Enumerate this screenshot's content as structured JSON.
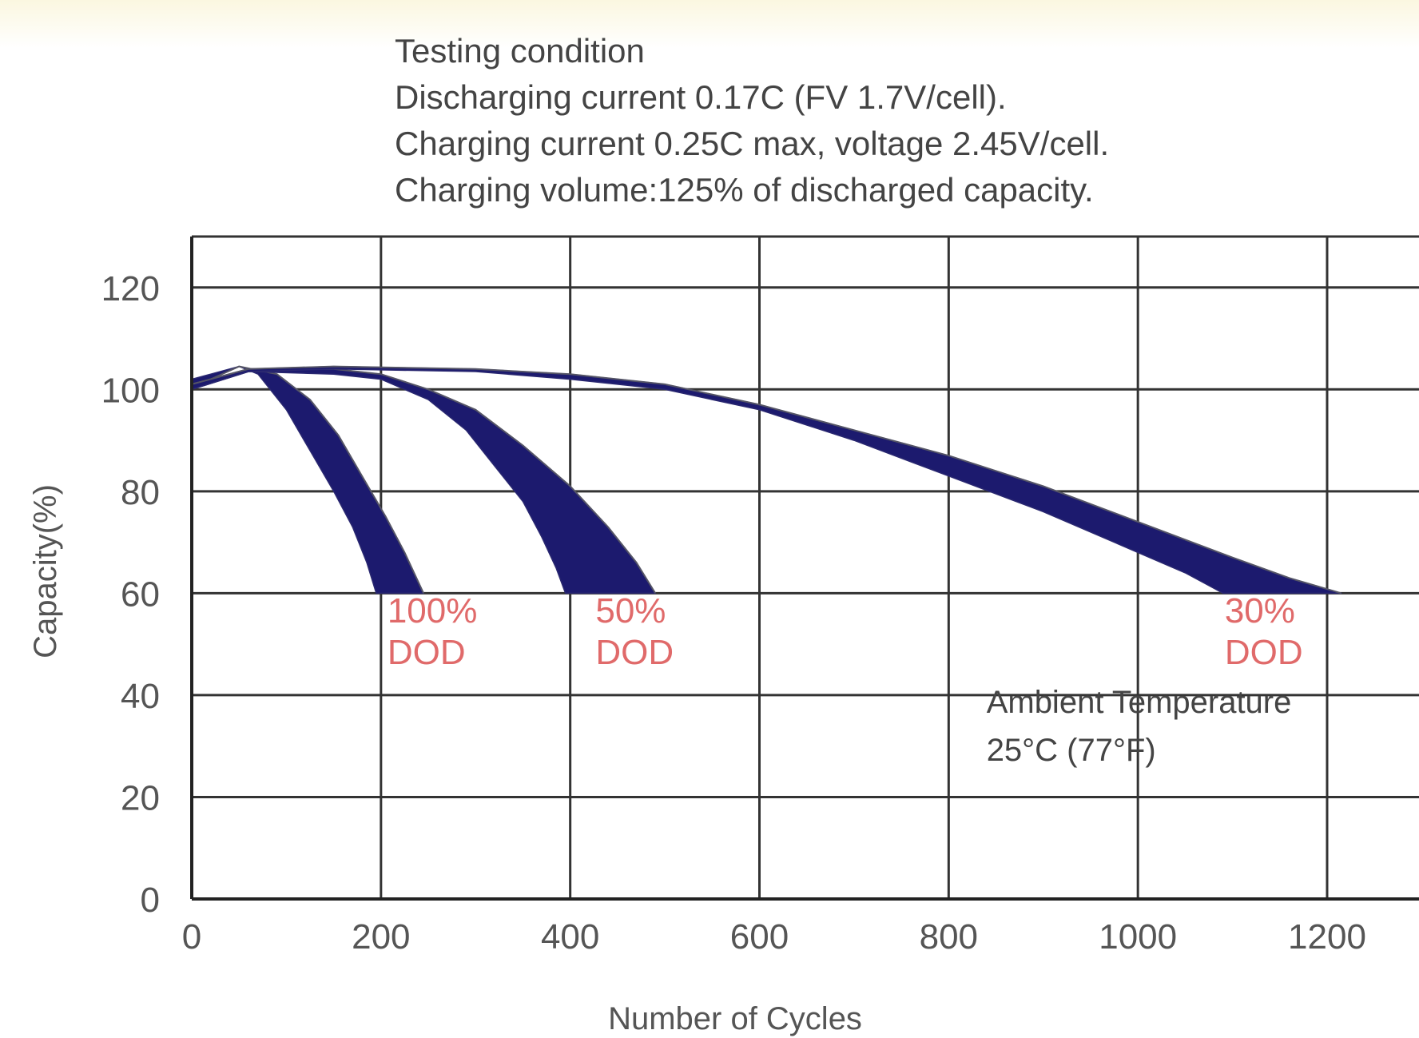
{
  "chart_data": {
    "type": "area",
    "title_lines": [
      "Testing condition",
      "Discharging current 0.17C (FV 1.7V/cell).",
      "Charging current 0.25C max, voltage 2.45V/cell.",
      "Charging volume:125% of discharged capacity."
    ],
    "xlabel": "Number of Cycles",
    "ylabel": "Capacity(%)",
    "xlim": [
      0,
      1300
    ],
    "ylim": [
      0,
      130
    ],
    "x_ticks": [
      "0",
      "200",
      "400",
      "600",
      "800",
      "1000",
      "1200"
    ],
    "x_tick_values": [
      0,
      200,
      400,
      600,
      800,
      1000,
      1200
    ],
    "y_ticks": [
      "0",
      "20",
      "40",
      "60",
      "80",
      "100",
      "120"
    ],
    "y_tick_values": [
      0,
      20,
      40,
      60,
      80,
      100,
      120
    ],
    "grid": true,
    "band_color": "#1c1a6e",
    "annotation_color": "#e06a6a",
    "series": [
      {
        "dod_line1": "100%",
        "dod_line2": "DOD",
        "label_at": [
          200,
          53
        ],
        "upper": [
          [
            0,
            100
          ],
          [
            20,
            102
          ],
          [
            50,
            104.5
          ],
          [
            90,
            103
          ],
          [
            125,
            98
          ],
          [
            155,
            91
          ],
          [
            180,
            83
          ],
          [
            205,
            75
          ],
          [
            225,
            68
          ],
          [
            245,
            60
          ]
        ],
        "lower": [
          [
            0,
            102
          ],
          [
            20,
            103
          ],
          [
            50,
            104.5
          ],
          [
            70,
            103
          ],
          [
            100,
            96
          ],
          [
            125,
            88
          ],
          [
            150,
            80
          ],
          [
            170,
            73
          ],
          [
            185,
            66
          ],
          [
            195,
            60
          ]
        ]
      },
      {
        "dod_line1": "50%",
        "dod_line2": "DOD",
        "label_at": [
          420,
          53
        ],
        "upper": [
          [
            0,
            101
          ],
          [
            60,
            104
          ],
          [
            150,
            104
          ],
          [
            200,
            103
          ],
          [
            250,
            100
          ],
          [
            300,
            96
          ],
          [
            350,
            89
          ],
          [
            400,
            81
          ],
          [
            440,
            73
          ],
          [
            470,
            66
          ],
          [
            490,
            60
          ]
        ],
        "lower": [
          [
            0,
            100
          ],
          [
            60,
            103.5
          ],
          [
            150,
            103
          ],
          [
            200,
            102
          ],
          [
            250,
            98
          ],
          [
            290,
            92
          ],
          [
            320,
            85
          ],
          [
            350,
            78
          ],
          [
            370,
            71
          ],
          [
            385,
            65
          ],
          [
            395,
            60
          ]
        ]
      },
      {
        "dod_line1": "30%",
        "dod_line2": "DOD",
        "label_at": [
          1085,
          53
        ],
        "upper": [
          [
            0,
            101
          ],
          [
            60,
            104
          ],
          [
            150,
            104.5
          ],
          [
            300,
            104
          ],
          [
            400,
            103
          ],
          [
            500,
            101
          ],
          [
            600,
            97
          ],
          [
            700,
            92
          ],
          [
            800,
            87
          ],
          [
            900,
            81
          ],
          [
            1000,
            74
          ],
          [
            1100,
            67
          ],
          [
            1160,
            63
          ],
          [
            1215,
            60
          ]
        ],
        "lower": [
          [
            0,
            100
          ],
          [
            60,
            103.5
          ],
          [
            150,
            104
          ],
          [
            300,
            103.5
          ],
          [
            400,
            102
          ],
          [
            500,
            100
          ],
          [
            600,
            96
          ],
          [
            700,
            90
          ],
          [
            800,
            83
          ],
          [
            900,
            76
          ],
          [
            1000,
            68
          ],
          [
            1050,
            64
          ],
          [
            1080,
            61
          ],
          [
            1090,
            60
          ]
        ]
      }
    ],
    "temperature_line1": "Ambient Temperature",
    "temperature_line2": "25°C (77°F)",
    "temperature_at": [
      840,
      35
    ]
  }
}
